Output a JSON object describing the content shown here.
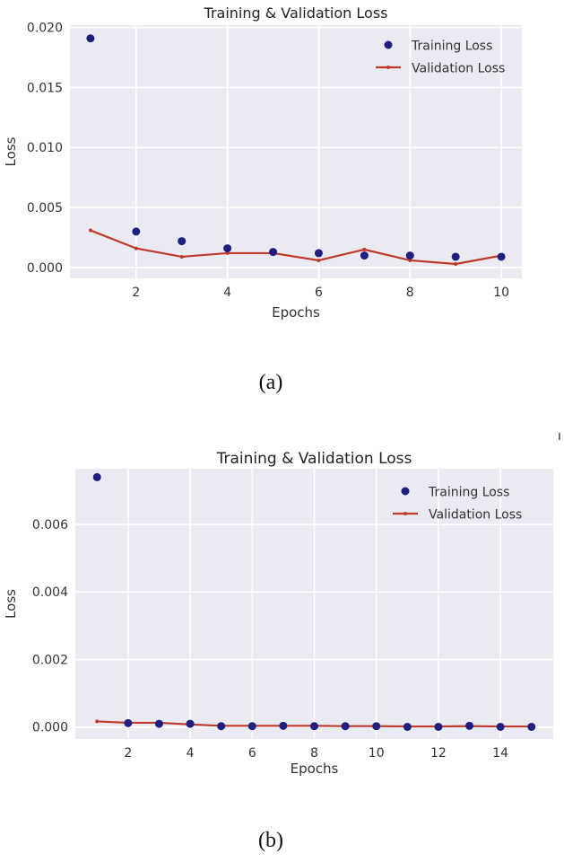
{
  "chart_data": [
    {
      "id": "a",
      "type": "line",
      "title": "Training & Validation Loss",
      "xlabel": "Epochs",
      "ylabel": "Loss",
      "xlim": [
        0.55,
        10.45
      ],
      "ylim": [
        -0.0009,
        0.0202
      ],
      "xticks": [
        2,
        4,
        6,
        8,
        10
      ],
      "yticks": [
        0.0,
        0.005,
        0.01,
        0.015,
        0.02
      ],
      "ytick_labels": [
        "0.000",
        "0.005",
        "0.010",
        "0.015",
        "0.020"
      ],
      "grid": true,
      "legend_position": "top-right",
      "caption": "(a)",
      "series": [
        {
          "name": "Training Loss",
          "style": "scatter",
          "color": "#1f1f80",
          "x": [
            1,
            2,
            3,
            4,
            5,
            6,
            7,
            8,
            9,
            10
          ],
          "values": [
            0.0191,
            0.003,
            0.0022,
            0.0016,
            0.0013,
            0.0012,
            0.001,
            0.001,
            0.0009,
            0.0009
          ]
        },
        {
          "name": "Validation Loss",
          "style": "line",
          "color": "#c0392b",
          "x": [
            1,
            2,
            3,
            4,
            5,
            6,
            7,
            8,
            9,
            10
          ],
          "values": [
            0.0031,
            0.0016,
            0.0009,
            0.0012,
            0.0012,
            0.0006,
            0.0015,
            0.0006,
            0.0003,
            0.001
          ]
        }
      ]
    },
    {
      "id": "b",
      "type": "line",
      "title": "Training & Validation Loss",
      "xlabel": "Epochs",
      "ylabel": "Loss",
      "xlim": [
        0.3,
        15.7
      ],
      "ylim": [
        -0.00035,
        0.00765
      ],
      "xticks": [
        2,
        4,
        6,
        8,
        10,
        12,
        14
      ],
      "yticks": [
        0.0,
        0.002,
        0.004,
        0.006
      ],
      "ytick_labels": [
        "0.000",
        "0.002",
        "0.004",
        "0.006"
      ],
      "grid": true,
      "legend_position": "top-right",
      "caption": "(b)",
      "series": [
        {
          "name": "Training Loss",
          "style": "scatter",
          "color": "#1f1f80",
          "x": [
            1,
            2,
            3,
            4,
            5,
            6,
            7,
            8,
            9,
            10,
            11,
            12,
            13,
            14,
            15
          ],
          "values": [
            0.0074,
            0.00012,
            0.0001,
            0.0001,
            3e-05,
            3e-05,
            4e-05,
            3e-05,
            3e-05,
            3e-05,
            1e-05,
            1e-05,
            4e-05,
            1e-05,
            1e-05
          ]
        },
        {
          "name": "Validation Loss",
          "style": "line",
          "color": "#c0392b",
          "x": [
            1,
            2,
            3,
            4,
            5,
            6,
            7,
            8,
            9,
            10,
            11,
            12,
            13,
            14,
            15
          ],
          "values": [
            0.00017,
            0.00013,
            0.00013,
            8e-05,
            4e-05,
            4e-05,
            4e-05,
            4e-05,
            3e-05,
            3e-05,
            2e-05,
            2e-05,
            3e-05,
            2e-05,
            2e-05
          ]
        }
      ]
    }
  ],
  "stray_mark": "ı"
}
